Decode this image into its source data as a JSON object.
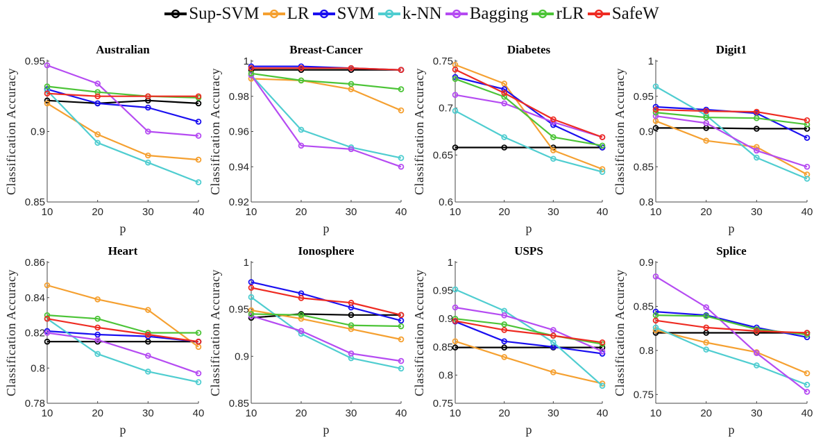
{
  "legend": [
    {
      "name": "Sup-SVM",
      "color": "#000000"
    },
    {
      "name": "LR",
      "color": "#f5a030"
    },
    {
      "name": "SVM",
      "color": "#1a0ff0"
    },
    {
      "name": "k-NN",
      "color": "#4fcdd0"
    },
    {
      "name": "Bagging",
      "color": "#b54bf2"
    },
    {
      "name": "rLR",
      "color": "#4cc437"
    },
    {
      "name": "SafeW",
      "color": "#ee2b22"
    }
  ],
  "chart_data": [
    {
      "type": "line",
      "title": "Australian",
      "xlabel": "p",
      "ylabel": "Classification Accuracy",
      "x": [
        10,
        20,
        30,
        40
      ],
      "xticks": [
        "10",
        "20",
        "30",
        "40"
      ],
      "ylim": [
        0.85,
        0.95
      ],
      "yticks": [
        "0.85",
        "0.9",
        "0.95"
      ],
      "ytick_values": [
        0.85,
        0.9,
        0.95
      ],
      "series": [
        {
          "name": "Sup-SVM",
          "values": [
            0.922,
            0.92,
            0.922,
            0.92
          ]
        },
        {
          "name": "LR",
          "values": [
            0.92,
            0.898,
            0.883,
            0.88
          ]
        },
        {
          "name": "SVM",
          "values": [
            0.93,
            0.92,
            0.917,
            0.907
          ]
        },
        {
          "name": "k-NN",
          "values": [
            0.929,
            0.892,
            0.878,
            0.864
          ]
        },
        {
          "name": "Bagging",
          "values": [
            0.947,
            0.934,
            0.9,
            0.897
          ]
        },
        {
          "name": "rLR",
          "values": [
            0.932,
            0.928,
            0.925,
            0.924
          ]
        },
        {
          "name": "SafeW",
          "values": [
            0.927,
            0.925,
            0.925,
            0.925
          ]
        }
      ]
    },
    {
      "type": "line",
      "title": "Breast-Cancer",
      "xlabel": "p",
      "ylabel": "Classification Accuracy",
      "x": [
        10,
        20,
        30,
        40
      ],
      "xticks": [
        "10",
        "20",
        "30",
        "40"
      ],
      "ylim": [
        0.92,
        1.0
      ],
      "yticks": [
        "0.92",
        "0.94",
        "0.96",
        "0.98",
        "1"
      ],
      "ytick_values": [
        0.92,
        0.94,
        0.96,
        0.98,
        1.0
      ],
      "series": [
        {
          "name": "Sup-SVM",
          "values": [
            0.995,
            0.995,
            0.995,
            0.995
          ]
        },
        {
          "name": "LR",
          "values": [
            0.99,
            0.989,
            0.984,
            0.972
          ]
        },
        {
          "name": "SVM",
          "values": [
            0.997,
            0.997,
            0.996,
            0.995
          ]
        },
        {
          "name": "k-NN",
          "values": [
            0.992,
            0.961,
            0.951,
            0.945
          ]
        },
        {
          "name": "Bagging",
          "values": [
            0.992,
            0.952,
            0.95,
            0.94
          ]
        },
        {
          "name": "rLR",
          "values": [
            0.993,
            0.989,
            0.987,
            0.984
          ]
        },
        {
          "name": "SafeW",
          "values": [
            0.996,
            0.996,
            0.996,
            0.995
          ]
        }
      ]
    },
    {
      "type": "line",
      "title": "Diabetes",
      "xlabel": "p",
      "ylabel": "Classification Accuracy",
      "x": [
        10,
        20,
        30,
        40
      ],
      "xticks": [
        "10",
        "20",
        "30",
        "40"
      ],
      "ylim": [
        0.6,
        0.75
      ],
      "yticks": [
        "0.6",
        "0.65",
        "0.7",
        "0.75"
      ],
      "ytick_values": [
        0.6,
        0.65,
        0.7,
        0.75
      ],
      "series": [
        {
          "name": "Sup-SVM",
          "values": [
            0.658,
            0.658,
            0.658,
            0.658
          ]
        },
        {
          "name": "LR",
          "values": [
            0.746,
            0.726,
            0.655,
            0.635
          ]
        },
        {
          "name": "SVM",
          "values": [
            0.733,
            0.72,
            0.682,
            0.658
          ]
        },
        {
          "name": "k-NN",
          "values": [
            0.697,
            0.669,
            0.646,
            0.632
          ]
        },
        {
          "name": "Bagging",
          "values": [
            0.714,
            0.705,
            0.685,
            0.669
          ]
        },
        {
          "name": "rLR",
          "values": [
            0.731,
            0.712,
            0.669,
            0.66
          ]
        },
        {
          "name": "SafeW",
          "values": [
            0.741,
            0.716,
            0.688,
            0.669
          ]
        }
      ]
    },
    {
      "type": "line",
      "title": "Digit1",
      "xlabel": "p",
      "ylabel": "Classification Accuracy",
      "x": [
        10,
        20,
        30,
        40
      ],
      "xticks": [
        "10",
        "20",
        "30",
        "40"
      ],
      "ylim": [
        0.8,
        1.0
      ],
      "yticks": [
        "0.8",
        "0.85",
        "0.9",
        "0.95",
        "1"
      ],
      "ytick_values": [
        0.8,
        0.85,
        0.9,
        0.95,
        1.0
      ],
      "series": [
        {
          "name": "Sup-SVM",
          "values": [
            0.905,
            0.905,
            0.904,
            0.904
          ]
        },
        {
          "name": "LR",
          "values": [
            0.915,
            0.887,
            0.878,
            0.839
          ]
        },
        {
          "name": "SVM",
          "values": [
            0.935,
            0.931,
            0.926,
            0.891
          ]
        },
        {
          "name": "k-NN",
          "values": [
            0.964,
            0.923,
            0.863,
            0.833
          ]
        },
        {
          "name": "Bagging",
          "values": [
            0.922,
            0.912,
            0.873,
            0.85
          ]
        },
        {
          "name": "rLR",
          "values": [
            0.927,
            0.92,
            0.919,
            0.91
          ]
        },
        {
          "name": "SafeW",
          "values": [
            0.931,
            0.929,
            0.928,
            0.916
          ]
        }
      ]
    },
    {
      "type": "line",
      "title": "Heart",
      "xlabel": "p",
      "ylabel": "Classification Accuracy",
      "x": [
        10,
        20,
        30,
        40
      ],
      "xticks": [
        "10",
        "20",
        "30",
        "40"
      ],
      "ylim": [
        0.78,
        0.86
      ],
      "yticks": [
        "0.78",
        "0.8",
        "0.82",
        "0.84",
        "0.86"
      ],
      "ytick_values": [
        0.78,
        0.8,
        0.82,
        0.84,
        0.86
      ],
      "series": [
        {
          "name": "Sup-SVM",
          "values": [
            0.815,
            0.815,
            0.815,
            0.815
          ]
        },
        {
          "name": "LR",
          "values": [
            0.847,
            0.839,
            0.833,
            0.812
          ]
        },
        {
          "name": "SVM",
          "values": [
            0.821,
            0.819,
            0.818,
            0.815
          ]
        },
        {
          "name": "k-NN",
          "values": [
            0.828,
            0.808,
            0.798,
            0.792
          ]
        },
        {
          "name": "Bagging",
          "values": [
            0.82,
            0.816,
            0.807,
            0.797
          ]
        },
        {
          "name": "rLR",
          "values": [
            0.83,
            0.828,
            0.82,
            0.82
          ]
        },
        {
          "name": "SafeW",
          "values": [
            0.828,
            0.823,
            0.819,
            0.815
          ]
        }
      ]
    },
    {
      "type": "line",
      "title": "Ionosphere",
      "xlabel": "p",
      "ylabel": "Classification Accuracy",
      "x": [
        10,
        20,
        30,
        40
      ],
      "xticks": [
        "10",
        "20",
        "30",
        "40"
      ],
      "ylim": [
        0.85,
        1.0
      ],
      "yticks": [
        "0.85",
        "0.9",
        "0.95",
        "1"
      ],
      "ytick_values": [
        0.85,
        0.9,
        0.95,
        1.0
      ],
      "series": [
        {
          "name": "Sup-SVM",
          "values": [
            0.941,
            0.945,
            0.944,
            0.944
          ]
        },
        {
          "name": "LR",
          "values": [
            0.949,
            0.94,
            0.929,
            0.918
          ]
        },
        {
          "name": "SVM",
          "values": [
            0.979,
            0.967,
            0.952,
            0.938
          ]
        },
        {
          "name": "k-NN",
          "values": [
            0.963,
            0.924,
            0.898,
            0.887
          ]
        },
        {
          "name": "Bagging",
          "values": [
            0.943,
            0.927,
            0.903,
            0.895
          ]
        },
        {
          "name": "rLR",
          "values": [
            0.945,
            0.944,
            0.933,
            0.932
          ]
        },
        {
          "name": "SafeW",
          "values": [
            0.973,
            0.962,
            0.957,
            0.944
          ]
        }
      ]
    },
    {
      "type": "line",
      "title": "USPS",
      "xlabel": "p",
      "ylabel": "Classification Accuracy",
      "x": [
        10,
        20,
        30,
        40
      ],
      "xticks": [
        "10",
        "20",
        "30",
        "40"
      ],
      "ylim": [
        0.75,
        1.0
      ],
      "yticks": [
        "0.75",
        "0.8",
        "0.85",
        "0.9",
        "0.95",
        "1"
      ],
      "ytick_values": [
        0.75,
        0.8,
        0.85,
        0.9,
        0.95,
        1.0
      ],
      "series": [
        {
          "name": "Sup-SVM",
          "values": [
            0.849,
            0.849,
            0.849,
            0.849
          ]
        },
        {
          "name": "LR",
          "values": [
            0.86,
            0.832,
            0.805,
            0.785
          ]
        },
        {
          "name": "SVM",
          "values": [
            0.895,
            0.86,
            0.85,
            0.838
          ]
        },
        {
          "name": "k-NN",
          "values": [
            0.952,
            0.914,
            0.858,
            0.781
          ]
        },
        {
          "name": "Bagging",
          "values": [
            0.92,
            0.906,
            0.88,
            0.842
          ]
        },
        {
          "name": "rLR",
          "values": [
            0.9,
            0.89,
            0.87,
            0.855
          ]
        },
        {
          "name": "SafeW",
          "values": [
            0.896,
            0.88,
            0.87,
            0.858
          ]
        }
      ]
    },
    {
      "type": "line",
      "title": "Splice",
      "xlabel": "p",
      "ylabel": "Classification Accuracy",
      "x": [
        10,
        20,
        30,
        40
      ],
      "xticks": [
        "10",
        "20",
        "30",
        "40"
      ],
      "ylim": [
        0.74,
        0.9
      ],
      "yticks": [
        "0.75",
        "0.8",
        "0.85",
        "0.9"
      ],
      "ytick_values": [
        0.75,
        0.8,
        0.85,
        0.9
      ],
      "series": [
        {
          "name": "Sup-SVM",
          "values": [
            0.82,
            0.82,
            0.82,
            0.82
          ]
        },
        {
          "name": "LR",
          "values": [
            0.823,
            0.809,
            0.798,
            0.774
          ]
        },
        {
          "name": "SVM",
          "values": [
            0.844,
            0.84,
            0.826,
            0.815
          ]
        },
        {
          "name": "k-NN",
          "values": [
            0.826,
            0.801,
            0.783,
            0.761
          ]
        },
        {
          "name": "Bagging",
          "values": [
            0.884,
            0.849,
            0.797,
            0.753
          ]
        },
        {
          "name": "rLR",
          "values": [
            0.84,
            0.839,
            0.824,
            0.818
          ]
        },
        {
          "name": "SafeW",
          "values": [
            0.834,
            0.826,
            0.822,
            0.82
          ]
        }
      ]
    }
  ]
}
